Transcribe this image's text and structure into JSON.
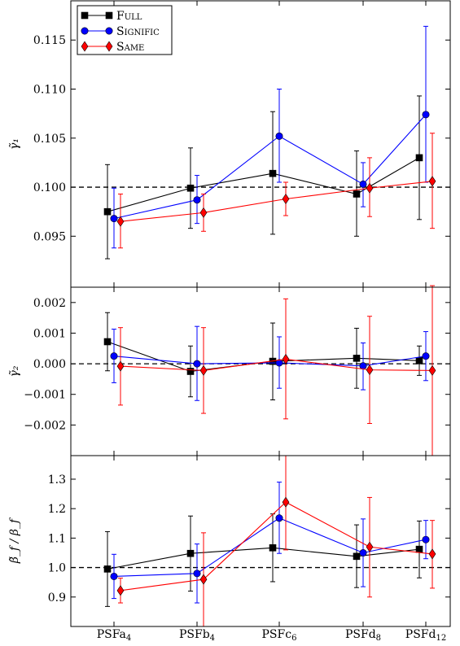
{
  "chart_data": {
    "type": "line",
    "categories": [
      "PSFa",
      "PSFb",
      "PSFc",
      "PSFd",
      "PSFd"
    ],
    "category_subscripts": [
      "4",
      "4",
      "6",
      "8",
      "12"
    ],
    "legend": {
      "placement": "top-left",
      "entries": [
        {
          "label": "Full",
          "color": "#000000",
          "marker": "square"
        },
        {
          "label": "Signific",
          "color": "#0000ff",
          "marker": "circle"
        },
        {
          "label": "Same",
          "color": "#ff0000",
          "marker": "diamond"
        }
      ]
    },
    "panels": [
      {
        "ylabel": "γ̃₁",
        "ylim": [
          0.0898,
          0.119
        ],
        "ref_line": 0.1,
        "yticks": [
          0.095,
          0.1,
          0.105,
          0.11,
          0.115
        ],
        "ytick_labels": [
          "0.095",
          "0.100",
          "0.105",
          "0.110",
          "0.115"
        ],
        "series": [
          {
            "name": "Full",
            "values": [
              0.0975,
              0.0999,
              0.1014,
              0.0993,
              0.103
            ],
            "lower": [
              0.0927,
              0.0958,
              0.0952,
              0.095,
              0.0967
            ],
            "upper": [
              0.1023,
              0.104,
              0.1077,
              0.1037,
              0.1093
            ]
          },
          {
            "name": "Signific",
            "values": [
              0.0968,
              0.0987,
              0.1052,
              0.1003,
              0.1074
            ],
            "lower": [
              0.0938,
              0.0963,
              0.1005,
              0.098,
              0.1005
            ],
            "upper": [
              0.0999,
              0.1012,
              0.11,
              0.1025,
              0.1164
            ]
          },
          {
            "name": "Same",
            "values": [
              0.0965,
              0.0974,
              0.0988,
              0.0999,
              0.1006
            ],
            "lower": [
              0.0938,
              0.0955,
              0.0971,
              0.097,
              0.0958
            ],
            "upper": [
              0.0993,
              0.0993,
              0.1005,
              0.103,
              0.1055
            ]
          }
        ]
      },
      {
        "ylabel": "γ̃₂",
        "ylim": [
          -0.003,
          0.0025
        ],
        "ref_line": 0.0,
        "yticks": [
          -0.002,
          -0.001,
          0.0,
          0.001,
          0.002
        ],
        "ytick_labels": [
          "−0.002",
          "−0.001",
          "0.000",
          "0.001",
          "0.002"
        ],
        "series": [
          {
            "name": "Full",
            "values": [
              0.00072,
              -0.00025,
              8e-05,
              0.00018,
              0.0001
            ],
            "lower": [
              -0.00023,
              -0.00108,
              -0.00118,
              -0.0008,
              -0.00038
            ],
            "upper": [
              0.00167,
              0.00058,
              0.00133,
              0.00116,
              0.00058
            ]
          },
          {
            "name": "Signific",
            "values": [
              0.00025,
              0.0,
              3e-05,
              -7e-05,
              0.00025
            ],
            "lower": [
              -0.00062,
              -0.0012,
              -0.0008,
              -0.00085,
              -0.00055
            ],
            "upper": [
              0.00113,
              0.00122,
              0.00088,
              0.00068,
              0.00105
            ]
          },
          {
            "name": "Same",
            "values": [
              -8e-05,
              -0.00022,
              0.00015,
              -0.0002,
              -0.00022
            ],
            "lower": [
              -0.00135,
              -0.00162,
              -0.0018,
              -0.00195,
              -0.003
            ],
            "upper": [
              0.00118,
              0.00118,
              0.00212,
              0.00155,
              0.00255
            ]
          }
        ]
      },
      {
        "ylabel": "β̃_f / β_f",
        "ylim": [
          0.8,
          1.38
        ],
        "ref_line": 1.0,
        "yticks": [
          0.9,
          1.0,
          1.1,
          1.2,
          1.3
        ],
        "ytick_labels": [
          "0.9",
          "1.0",
          "1.1",
          "1.2",
          "1.3"
        ],
        "series": [
          {
            "name": "Full",
            "values": [
              0.995,
              1.048,
              1.067,
              1.038,
              1.062
            ],
            "lower": [
              0.868,
              0.92,
              0.952,
              0.932,
              0.965
            ],
            "upper": [
              1.122,
              1.175,
              1.182,
              1.145,
              1.158
            ]
          },
          {
            "name": "Signific",
            "values": [
              0.97,
              0.98,
              1.168,
              1.05,
              1.095
            ],
            "lower": [
              0.895,
              0.88,
              1.048,
              0.935,
              1.03
            ],
            "upper": [
              1.045,
              1.08,
              1.29,
              1.165,
              1.16
            ]
          },
          {
            "name": "Same",
            "values": [
              0.922,
              0.96,
              1.222,
              1.07,
              1.046
            ],
            "lower": [
              0.88,
              0.8,
              1.06,
              0.9,
              0.93
            ],
            "upper": [
              0.964,
              1.118,
              1.38,
              1.238,
              1.16
            ]
          }
        ]
      }
    ]
  }
}
